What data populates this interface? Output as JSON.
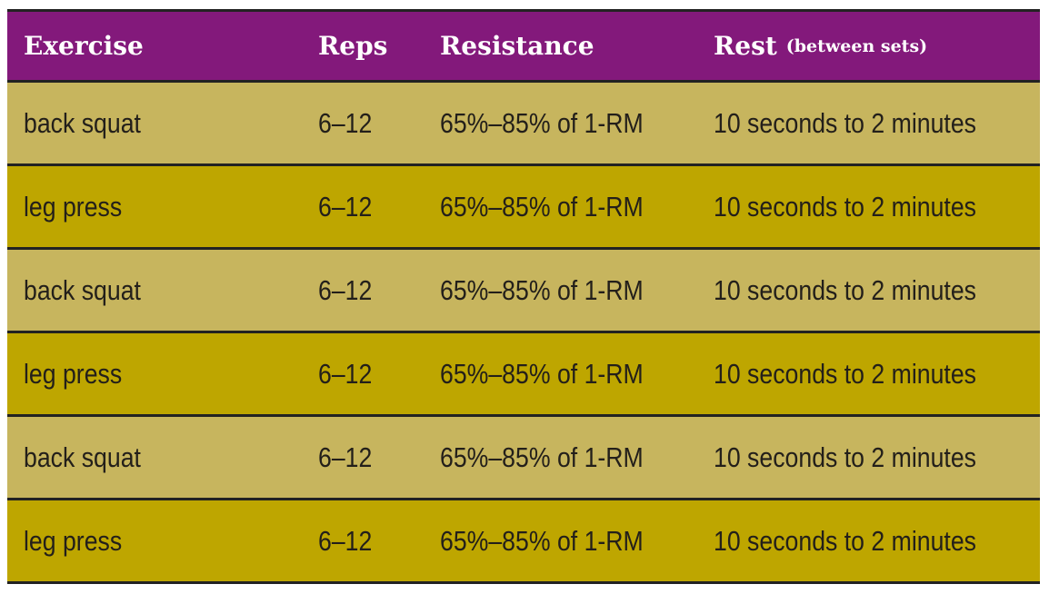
{
  "header": {
    "exercise": "Exercise",
    "reps": "Reps",
    "resistance": "Resistance",
    "rest": "Rest",
    "rest_note": "(between sets)"
  },
  "colors": {
    "header": "#83197b",
    "row_light": "#c7b55e",
    "row_dark": "#bea600",
    "border": "#222222"
  },
  "rows": [
    {
      "exercise": "back squat",
      "reps": "6–12",
      "resistance": "65%–85% of 1-RM",
      "rest": "10 seconds to 2 minutes"
    },
    {
      "exercise": "leg press",
      "reps": "6–12",
      "resistance": "65%–85% of 1-RM",
      "rest": "10 seconds to 2 minutes"
    },
    {
      "exercise": "back squat",
      "reps": "6–12",
      "resistance": "65%–85% of 1-RM",
      "rest": "10 seconds to 2 minutes"
    },
    {
      "exercise": "leg press",
      "reps": "6–12",
      "resistance": "65%–85% of 1-RM",
      "rest": "10 seconds to 2 minutes"
    },
    {
      "exercise": "back squat",
      "reps": "6–12",
      "resistance": "65%–85% of 1-RM",
      "rest": "10 seconds to 2 minutes"
    },
    {
      "exercise": "leg press",
      "reps": "6–12",
      "resistance": "65%–85% of 1-RM",
      "rest": "10 seconds to 2 minutes"
    }
  ]
}
